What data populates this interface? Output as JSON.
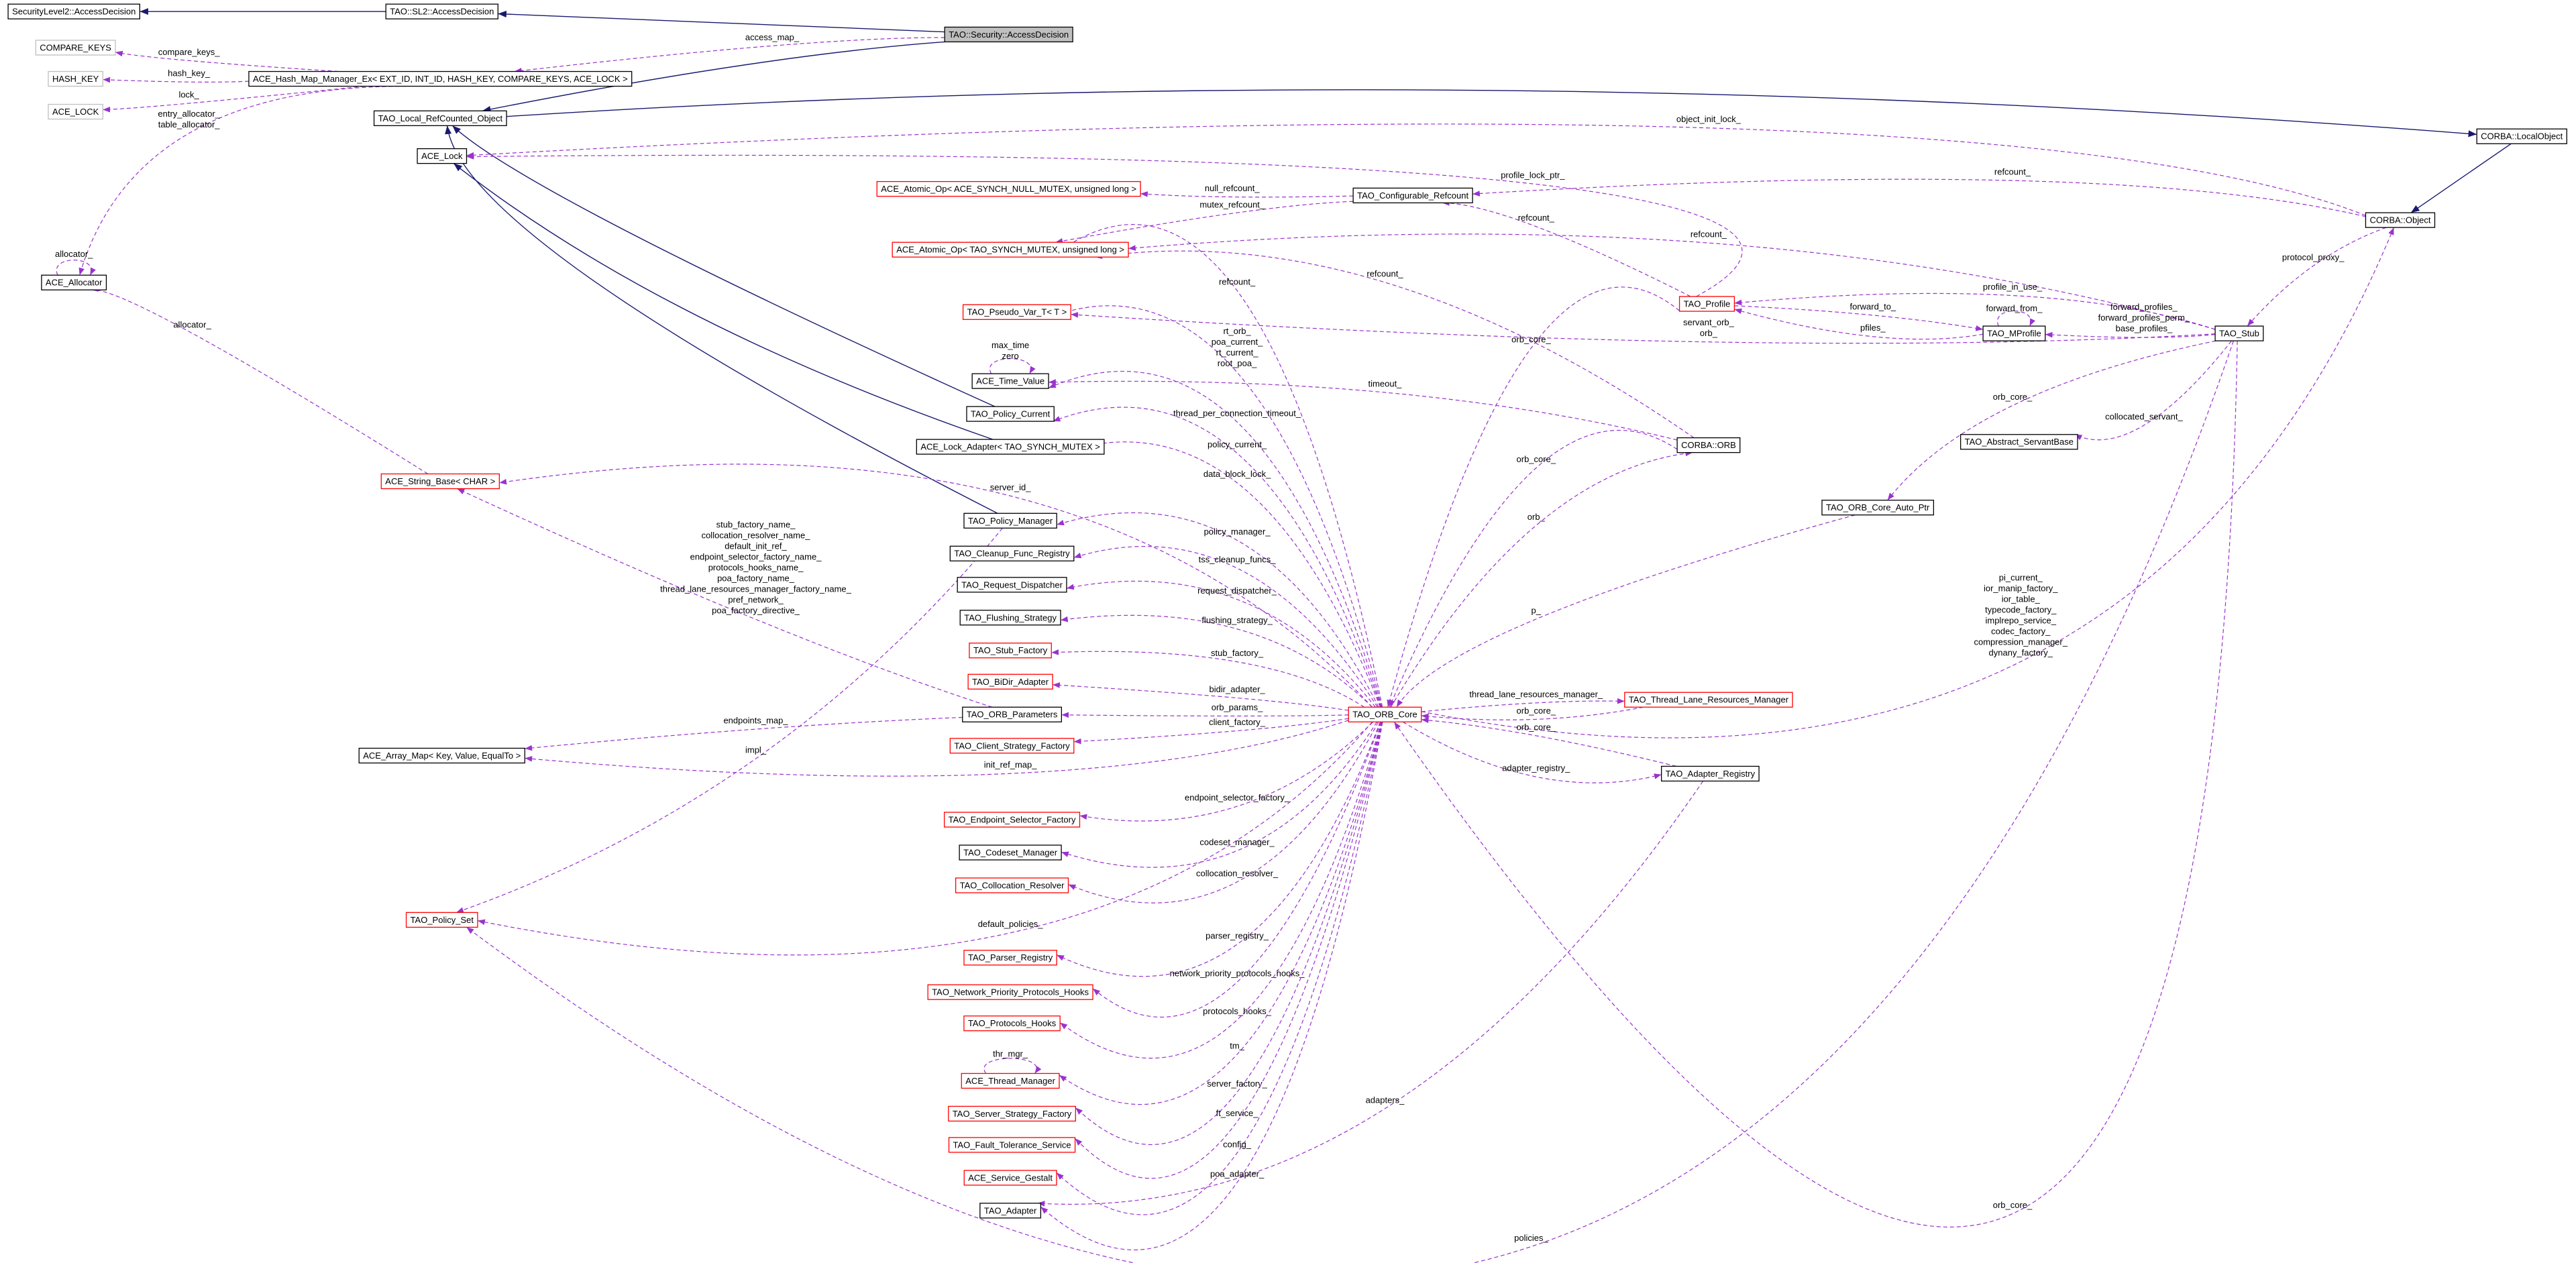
{
  "nodes": [
    "SecurityLevel2::AccessDecision",
    "TAO::SL2::AccessDecision",
    "TAO::Security::AccessDecision",
    "COMPARE_KEYS",
    "HASH_KEY",
    "ACE_LOCK",
    "ACE_Hash_Map_Manager_Ex< EXT_ID, INT_ID, HASH_KEY, COMPARE_KEYS, ACE_LOCK >",
    "TAO_Local_RefCounted_Object",
    "ACE_Lock",
    "ACE_Allocator",
    "ACE_Atomic_Op< ACE_SYNCH_NULL_MUTEX, unsigned long >",
    "TAO_Configurable_Refcount",
    "ACE_Atomic_Op< TAO_SYNCH_MUTEX, unsigned long >",
    "TAO_Pseudo_Var_T< T >",
    "ACE_Time_Value",
    "TAO_Policy_Current",
    "ACE_Lock_Adapter< TAO_SYNCH_MUTEX >",
    "ACE_String_Base< CHAR >",
    "TAO_Policy_Manager",
    "TAO_Cleanup_Func_Registry",
    "TAO_Request_Dispatcher",
    "TAO_Flushing_Strategy",
    "TAO_Stub_Factory",
    "TAO_BiDir_Adapter",
    "TAO_ORB_Parameters",
    "ACE_Array_Map< Key, Value, EqualTo >",
    "TAO_Client_Strategy_Factory",
    "TAO_Endpoint_Selector_Factory",
    "TAO_Codeset_Manager",
    "TAO_Collocation_Resolver",
    "TAO_Policy_Set",
    "TAO_Parser_Registry",
    "TAO_Network_Priority_Protocols_Hooks",
    "TAO_Protocols_Hooks",
    "ACE_Thread_Manager",
    "TAO_Server_Strategy_Factory",
    "TAO_Fault_Tolerance_Service",
    "ACE_Service_Gestalt",
    "TAO_Adapter",
    "TAO_ORB_Core",
    "TAO_Profile",
    "TAO_MProfile",
    "TAO_Stub",
    "CORBA::ORB",
    "TAO_Abstract_ServantBase",
    "TAO_ORB_Core_Auto_Ptr",
    "TAO_Thread_Lane_Resources_Manager",
    "TAO_Adapter_Registry",
    "CORBA::LocalObject",
    "CORBA::Object"
  ],
  "edge_labels": [
    "access_map_",
    "compare_keys_",
    "hash_key_",
    "lock_",
    [
      "entry_allocator_",
      "table_allocator_"
    ],
    "allocator_",
    "allocator_",
    "object_init_lock_",
    "profile_lock_ptr_",
    "refcount_",
    "null_refcount_",
    "mutex_refcount_",
    "refcount_",
    "refcount_",
    "refcount_",
    "refcount_",
    "protocol_proxy_",
    "profile_in_use_",
    "forward_from_",
    "forward_to_",
    [
      "forward_profiles_",
      "forward_profiles_perm_",
      "base_profiles_"
    ],
    "pfiles_",
    [
      "servant_orb_",
      "orb_"
    ],
    "orb_core_",
    [
      "rt_orb_",
      "poa_current_",
      "rt_current_",
      "root_poa_"
    ],
    [
      "max_time",
      "zero"
    ],
    "timeout_",
    "thread_per_connection_timeout_",
    "orb_core_",
    "collocated_servant_",
    "policy_current_",
    "orb_core_",
    "data_block_lock_",
    "server_id_",
    "orb_",
    "policy_manager_",
    [
      "stub_factory_name_",
      "collocation_resolver_name_",
      "default_init_ref_",
      "endpoint_selector_factory_name_",
      "protocols_hooks_name_",
      "poa_factory_name_",
      "thread_lane_resources_manager_factory_name_",
      "pref_network_",
      "poa_factory_directive_"
    ],
    "tss_cleanup_funcs_",
    "request_dispatcher_",
    "p_",
    "flushing_strategy_",
    [
      "pi_current_",
      "ior_manip_factory_",
      "ior_table_",
      "typecode_factory_",
      "implrepo_service_",
      "codec_factory_",
      "compression_manager_",
      "dynany_factory_"
    ],
    "stub_factory_",
    "bidir_adapter_",
    "thread_lane_resources_manager_",
    "orb_params_",
    "orb_core_",
    "endpoints_map_",
    "client_factory_",
    "orb_core_",
    "impl_",
    "init_ref_map_",
    "adapter_registry_",
    "endpoint_selector_factory_",
    "codeset_manager_",
    "collocation_resolver_",
    "default_policies_",
    "parser_registry_",
    "network_priority_protocols_hooks_",
    "protocols_hooks_",
    "thr_mgr_",
    "tm_",
    "server_factory_",
    "ft_service_",
    "adapters_",
    "config_",
    "poa_adapter_",
    "orb_core_",
    "policies_"
  ]
}
